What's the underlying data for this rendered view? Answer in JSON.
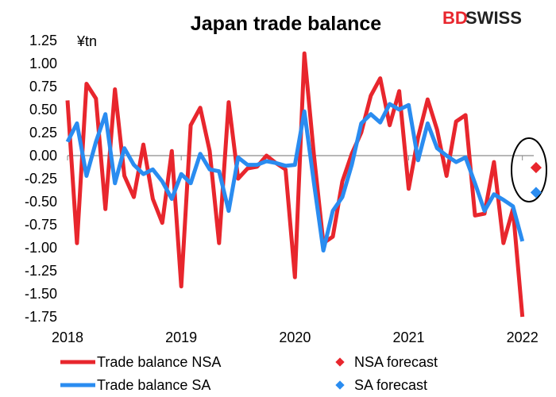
{
  "colors": {
    "nsa": "#e8262d",
    "sa": "#2a8cf0",
    "brand_red": "#e8262d",
    "brand_dark": "#222222"
  },
  "brand": {
    "bd": "BD",
    "swiss": "SWISS"
  },
  "chart_data": {
    "type": "line",
    "title": "Japan trade balance",
    "unit_label": "¥tn",
    "ylim": [
      -1.75,
      1.25
    ],
    "yticks": [
      "1.25",
      "1.00",
      "0.75",
      "0.50",
      "0.25",
      "0.00",
      "-0.25",
      "-0.50",
      "-0.75",
      "-1.00",
      "-1.25",
      "-1.50",
      "-1.75"
    ],
    "ytick_values": [
      1.25,
      1.0,
      0.75,
      0.5,
      0.25,
      0,
      -0.25,
      -0.5,
      -0.75,
      -1.0,
      -1.25,
      -1.5,
      -1.75
    ],
    "xlim": [
      2018.0,
      2022.1
    ],
    "xticks": [
      "2018",
      "2019",
      "2020",
      "2021",
      "2022"
    ],
    "xtick_values": [
      2018,
      2019,
      2020,
      2021,
      2022
    ],
    "grid": false,
    "legend_position": "bottom",
    "series": [
      {
        "name": "Trade balance NSA",
        "key": "nsa",
        "x": [
          2018.0,
          2018.083,
          2018.167,
          2018.25,
          2018.333,
          2018.417,
          2018.5,
          2018.583,
          2018.667,
          2018.75,
          2018.833,
          2018.917,
          2019.0,
          2019.083,
          2019.167,
          2019.25,
          2019.333,
          2019.417,
          2019.5,
          2019.583,
          2019.667,
          2019.75,
          2019.833,
          2019.917,
          2020.0,
          2020.083,
          2020.167,
          2020.25,
          2020.333,
          2020.417,
          2020.5,
          2020.583,
          2020.667,
          2020.75,
          2020.833,
          2020.917,
          2021.0,
          2021.083,
          2021.167,
          2021.25,
          2021.333,
          2021.417,
          2021.5,
          2021.583,
          2021.667,
          2021.75,
          2021.833,
          2021.917,
          2022.0
        ],
        "values": [
          0.6,
          -0.95,
          0.78,
          0.62,
          -0.58,
          0.72,
          -0.22,
          -0.45,
          0.12,
          -0.47,
          -0.73,
          0.05,
          -1.42,
          0.33,
          0.52,
          0.05,
          -0.95,
          0.58,
          -0.25,
          -0.14,
          -0.12,
          0.0,
          -0.08,
          -0.15,
          -1.32,
          1.11,
          0.0,
          -0.95,
          -0.88,
          -0.28,
          0.02,
          0.25,
          0.65,
          0.84,
          0.33,
          0.7,
          -0.36,
          0.2,
          0.61,
          0.28,
          -0.22,
          0.37,
          0.44,
          -0.65,
          -0.63,
          -0.07,
          -0.95,
          -0.58,
          -1.75
        ]
      },
      {
        "name": "Trade balance SA",
        "key": "sa",
        "x": [
          2018.0,
          2018.083,
          2018.167,
          2018.25,
          2018.333,
          2018.417,
          2018.5,
          2018.583,
          2018.667,
          2018.75,
          2018.833,
          2018.917,
          2019.0,
          2019.083,
          2019.167,
          2019.25,
          2019.333,
          2019.417,
          2019.5,
          2019.583,
          2019.667,
          2019.75,
          2019.833,
          2019.917,
          2020.0,
          2020.083,
          2020.167,
          2020.25,
          2020.333,
          2020.417,
          2020.5,
          2020.583,
          2020.667,
          2020.75,
          2020.833,
          2020.917,
          2021.0,
          2021.083,
          2021.167,
          2021.25,
          2021.333,
          2021.417,
          2021.5,
          2021.583,
          2021.667,
          2021.75,
          2021.833,
          2021.917,
          2022.0
        ],
        "values": [
          0.15,
          0.35,
          -0.22,
          0.15,
          0.45,
          -0.3,
          0.08,
          -0.1,
          -0.2,
          -0.15,
          -0.28,
          -0.47,
          -0.2,
          -0.3,
          0.02,
          -0.15,
          -0.17,
          -0.6,
          -0.02,
          -0.1,
          -0.1,
          -0.06,
          -0.08,
          -0.11,
          -0.1,
          0.48,
          -0.3,
          -1.03,
          -0.6,
          -0.45,
          -0.1,
          0.35,
          0.45,
          0.36,
          0.56,
          0.5,
          0.55,
          -0.05,
          0.35,
          0.08,
          0.0,
          -0.07,
          -0.02,
          -0.3,
          -0.6,
          -0.42,
          -0.48,
          -0.55,
          -0.93
        ]
      }
    ],
    "forecasts": [
      {
        "name": "NSA forecast",
        "key": "nsa",
        "x": 2022.12,
        "value": -0.13
      },
      {
        "name": "SA forecast",
        "key": "sa",
        "x": 2022.12,
        "value": -0.4
      }
    ]
  }
}
